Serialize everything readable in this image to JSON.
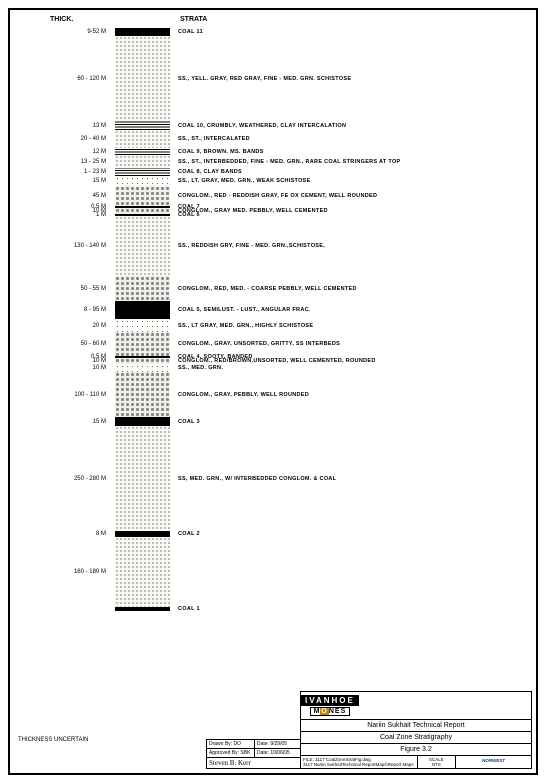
{
  "headers": {
    "thick": "THICK.",
    "strata": "STRATA"
  },
  "scale": 0.42,
  "layers": [
    {
      "thick_label": "9-52 M",
      "height": 8,
      "pattern": "coal",
      "desc": "COAL 11"
    },
    {
      "thick_label": "60 - 120 M",
      "height": 85,
      "pattern": "ss-dots",
      "desc": "SS., YELL. GRAY, RED GRAY, FINE - MED. GRN. SCHISTOSE"
    },
    {
      "thick_label": "13 M",
      "height": 9,
      "pattern": "banded",
      "desc": "COAL 10, CRUMBLY, WEATHERED, CLAY INTERCALATION"
    },
    {
      "thick_label": "20 - 40 M",
      "height": 18,
      "pattern": "ss-dots",
      "desc": "SS., ST., INTERCALATED"
    },
    {
      "thick_label": "12 M",
      "height": 7,
      "pattern": "banded",
      "desc": "COAL 9, BROWN. MS. BANDS"
    },
    {
      "thick_label": "13 - 25 M",
      "height": 13,
      "pattern": "ss-dots",
      "desc": "SS., ST., INTERBEDDED, FINE - MED. GRN., RARE COAL STRINGERS AT TOP"
    },
    {
      "thick_label": "1 - 23 M",
      "height": 8,
      "pattern": "banded",
      "desc": "COAL 8, CLAY BANDS"
    },
    {
      "thick_label": "15 M",
      "height": 10,
      "pattern": "ss-light",
      "desc": "SS., LT. GRAY, MED. GRN., WEAK SCHISTOSE"
    },
    {
      "thick_label": "45 M",
      "height": 20,
      "pattern": "conglom",
      "desc": "CONGLOM., RED - REDDISH GRAY, FE OX CEMENT, WELL ROUNDED"
    },
    {
      "thick_label": "0.5 M",
      "height": 2,
      "pattern": "coal",
      "desc": "COAL 7"
    },
    {
      "thick_label": "10 M",
      "height": 6,
      "pattern": "conglom",
      "desc": "CONGLOM., GRAY MED. PEBBLY, WELL CEMENTED"
    },
    {
      "thick_label": "1 M",
      "height": 2,
      "pattern": "coal",
      "desc": "COAL 6"
    },
    {
      "thick_label": "130 - 140 M",
      "height": 60,
      "pattern": "ss-dots",
      "desc": "SS., REDDISH GRY, FINE - MED. GRN.,SCHISTOSE,"
    },
    {
      "thick_label": "50 - 55 M",
      "height": 25,
      "pattern": "conglom",
      "desc": "CONGLOM., RED, MED. - COARSE PEBBLY, WELL CEMENTED"
    },
    {
      "thick_label": "8 - 95 M",
      "height": 18,
      "pattern": "coal",
      "desc": "COAL 5, SEMILUST. - LUST., ANGULAR FRAC."
    },
    {
      "thick_label": "20 M",
      "height": 13,
      "pattern": "ss-light",
      "desc": "SS., LT GRAY, MED. GRN., HIGHLY SCHISTOSE"
    },
    {
      "thick_label": "50 - 60 M",
      "height": 24,
      "pattern": "conglom",
      "desc": "CONGLOM., GRAY, UNSORTED, GRITTY, SS INTERBEDS"
    },
    {
      "thick_label": "0.5 M",
      "height": 2,
      "pattern": "coal",
      "desc": "COAL 4, SOOTY, BANDED"
    },
    {
      "thick_label": "10 M",
      "height": 6,
      "pattern": "conglom",
      "desc": "CONGLOM., RED/BROWN,UNSORTED, WELL CEMENTED, ROUNDED"
    },
    {
      "thick_label": "10 M",
      "height": 8,
      "pattern": "ss-light",
      "desc": "SS., MED. GRN."
    },
    {
      "thick_label": "100 - 110 M",
      "height": 45,
      "pattern": "conglom",
      "desc": "CONGLOM., GRAY, PEBBLY, WELL ROUNDED"
    },
    {
      "thick_label": "15 M",
      "height": 9,
      "pattern": "coal",
      "desc": "COAL 3"
    },
    {
      "thick_label": "250 - 280 M",
      "height": 105,
      "pattern": "ss-dots",
      "desc": "SS, MED. GRN., W/ INTERBEDDED CONGLOM. & COAL"
    },
    {
      "thick_label": "8 M",
      "height": 6,
      "pattern": "coal",
      "desc": "COAL 2"
    },
    {
      "thick_label": "160 - 180 M",
      "height": 70,
      "pattern": "ss-dots",
      "desc": ""
    },
    {
      "thick_label": "",
      "height": 4,
      "pattern": "coal",
      "desc": "COAL 1"
    }
  ],
  "bottom_caption": "THICKNESS UNCERTAIN",
  "signature": {
    "drawn_by_label": "Drawn By: DO",
    "drawn_date": "Date: 9/29/05",
    "approved_label": "Approved By: SBK",
    "approved_date": "Date: 10/06/05",
    "sig": "Steven B. Kerr"
  },
  "title_block": {
    "logo1": "IVANHOE",
    "logo2_pre": "M",
    "logo2_o": "O",
    "logo2_post": "NES",
    "line1": "Nariin Sukhait Technical Report",
    "line2": "Coal Zone Stratigraphy",
    "line3": "Figure 3.2",
    "file1": "FILE: 3117 CoalZoneStratFig.dwg",
    "file2": "3117 Nariin SukhaitTechnical ReportMaps\\Report Maps",
    "scale_label": "SCALE",
    "scale_val": "NTS",
    "company": "NORWEST"
  }
}
